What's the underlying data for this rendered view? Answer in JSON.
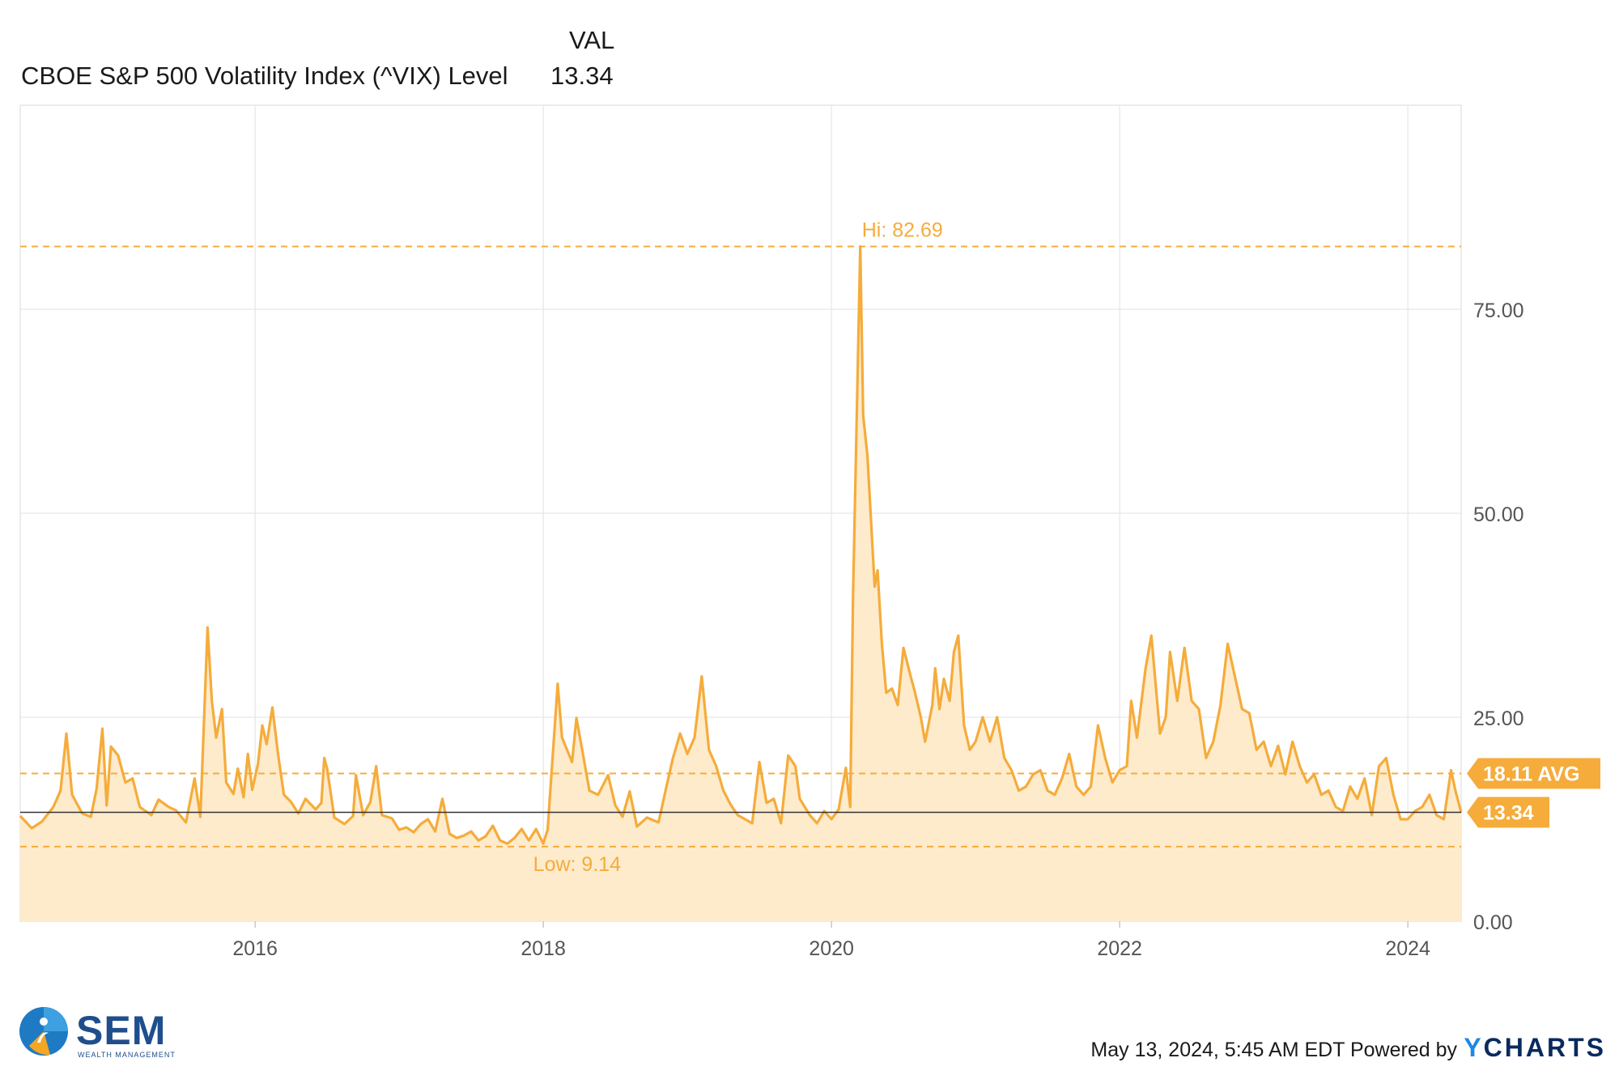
{
  "header": {
    "column_label": "VAL",
    "series_name": "CBOE S&P 500 Volatility Index (^VIX) Level",
    "series_value": "13.34"
  },
  "colors": {
    "line": "#f5ac3b",
    "fill": "#fdebcc",
    "grid": "#e6e6e6",
    "axis_text": "#555555",
    "badge": "#f5ac3b",
    "current_line": "#333333"
  },
  "chart_data": {
    "type": "area",
    "ylim": [
      0,
      100
    ],
    "y_ticks": [
      0,
      25,
      50,
      75
    ],
    "y_tick_labels": [
      "0.00",
      "25.00",
      "50.00",
      "75.00"
    ],
    "x_ticks": [
      2016,
      2018,
      2020,
      2022,
      2024
    ],
    "x_tick_labels": [
      "2016",
      "2018",
      "2020",
      "2022",
      "2024"
    ],
    "xlim": [
      2014.37,
      2024.37
    ],
    "grid": true,
    "series": [
      {
        "name": "CBOE S&P 500 Volatility Index (^VIX) Level",
        "points": [
          [
            2014.37,
            12.9
          ],
          [
            2014.45,
            11.4
          ],
          [
            2014.52,
            12.2
          ],
          [
            2014.6,
            14.0
          ],
          [
            2014.65,
            16.0
          ],
          [
            2014.69,
            23.0
          ],
          [
            2014.73,
            15.5
          ],
          [
            2014.8,
            13.2
          ],
          [
            2014.86,
            12.8
          ],
          [
            2014.9,
            16.2
          ],
          [
            2014.94,
            23.6
          ],
          [
            2014.97,
            14.2
          ],
          [
            2015.0,
            21.4
          ],
          [
            2015.05,
            20.3
          ],
          [
            2015.1,
            17.0
          ],
          [
            2015.15,
            17.5
          ],
          [
            2015.2,
            14.0
          ],
          [
            2015.28,
            13.0
          ],
          [
            2015.33,
            14.9
          ],
          [
            2015.4,
            14.0
          ],
          [
            2015.45,
            13.6
          ],
          [
            2015.52,
            12.1
          ],
          [
            2015.58,
            17.5
          ],
          [
            2015.62,
            12.8
          ],
          [
            2015.67,
            36.0
          ],
          [
            2015.7,
            27.0
          ],
          [
            2015.73,
            22.5
          ],
          [
            2015.77,
            26.0
          ],
          [
            2015.8,
            17.0
          ],
          [
            2015.85,
            15.6
          ],
          [
            2015.88,
            18.7
          ],
          [
            2015.92,
            15.2
          ],
          [
            2015.95,
            20.5
          ],
          [
            2015.98,
            16.1
          ],
          [
            2016.02,
            19.3
          ],
          [
            2016.05,
            24.0
          ],
          [
            2016.08,
            21.7
          ],
          [
            2016.12,
            26.2
          ],
          [
            2016.16,
            20.4
          ],
          [
            2016.2,
            15.5
          ],
          [
            2016.25,
            14.6
          ],
          [
            2016.3,
            13.2
          ],
          [
            2016.35,
            15.0
          ],
          [
            2016.42,
            13.7
          ],
          [
            2016.46,
            14.5
          ],
          [
            2016.48,
            20.0
          ],
          [
            2016.5,
            18.7
          ],
          [
            2016.55,
            12.7
          ],
          [
            2016.62,
            11.9
          ],
          [
            2016.68,
            12.9
          ],
          [
            2016.7,
            17.9
          ],
          [
            2016.75,
            13.0
          ],
          [
            2016.8,
            14.6
          ],
          [
            2016.84,
            19.0
          ],
          [
            2016.88,
            13.0
          ],
          [
            2016.95,
            12.6
          ],
          [
            2017.0,
            11.2
          ],
          [
            2017.05,
            11.5
          ],
          [
            2017.1,
            10.9
          ],
          [
            2017.15,
            11.9
          ],
          [
            2017.2,
            12.5
          ],
          [
            2017.25,
            11.0
          ],
          [
            2017.3,
            15.0
          ],
          [
            2017.35,
            10.7
          ],
          [
            2017.4,
            10.2
          ],
          [
            2017.45,
            10.5
          ],
          [
            2017.5,
            11.0
          ],
          [
            2017.55,
            9.9
          ],
          [
            2017.6,
            10.4
          ],
          [
            2017.65,
            11.7
          ],
          [
            2017.7,
            9.9
          ],
          [
            2017.75,
            9.5
          ],
          [
            2017.8,
            10.2
          ],
          [
            2017.85,
            11.3
          ],
          [
            2017.9,
            9.9
          ],
          [
            2017.95,
            11.3
          ],
          [
            2018.0,
            9.5
          ],
          [
            2018.03,
            11.2
          ],
          [
            2018.1,
            29.1
          ],
          [
            2018.13,
            22.5
          ],
          [
            2018.2,
            19.5
          ],
          [
            2018.23,
            24.9
          ],
          [
            2018.28,
            20.0
          ],
          [
            2018.32,
            16.0
          ],
          [
            2018.38,
            15.5
          ],
          [
            2018.45,
            17.9
          ],
          [
            2018.5,
            14.2
          ],
          [
            2018.55,
            12.8
          ],
          [
            2018.6,
            15.9
          ],
          [
            2018.65,
            11.6
          ],
          [
            2018.72,
            12.7
          ],
          [
            2018.8,
            12.1
          ],
          [
            2018.85,
            16.1
          ],
          [
            2018.9,
            20.0
          ],
          [
            2018.95,
            23.0
          ],
          [
            2019.0,
            20.5
          ],
          [
            2019.05,
            22.5
          ],
          [
            2019.1,
            30.0
          ],
          [
            2019.15,
            21.0
          ],
          [
            2019.2,
            19.0
          ],
          [
            2019.25,
            16.0
          ],
          [
            2019.3,
            14.3
          ],
          [
            2019.35,
            13.0
          ],
          [
            2019.45,
            12.0
          ],
          [
            2019.5,
            19.5
          ],
          [
            2019.55,
            14.5
          ],
          [
            2019.6,
            15.0
          ],
          [
            2019.65,
            12.0
          ],
          [
            2019.7,
            20.3
          ],
          [
            2019.75,
            19.0
          ],
          [
            2019.78,
            15.0
          ],
          [
            2019.85,
            13.0
          ],
          [
            2019.9,
            12.0
          ],
          [
            2019.95,
            13.5
          ],
          [
            2020.0,
            12.5
          ],
          [
            2020.05,
            13.7
          ],
          [
            2020.1,
            18.8
          ],
          [
            2020.13,
            14.0
          ],
          [
            2020.15,
            40.0
          ],
          [
            2020.2,
            82.69
          ],
          [
            2020.22,
            62.0
          ],
          [
            2020.25,
            57.0
          ],
          [
            2020.3,
            41.0
          ],
          [
            2020.32,
            43.0
          ],
          [
            2020.35,
            34.0
          ],
          [
            2020.38,
            28.0
          ],
          [
            2020.42,
            28.5
          ],
          [
            2020.46,
            26.5
          ],
          [
            2020.5,
            33.5
          ],
          [
            2020.55,
            30.0
          ],
          [
            2020.58,
            28.0
          ],
          [
            2020.62,
            25.0
          ],
          [
            2020.65,
            22.0
          ],
          [
            2020.7,
            26.5
          ],
          [
            2020.72,
            31.0
          ],
          [
            2020.75,
            26.0
          ],
          [
            2020.78,
            29.7
          ],
          [
            2020.82,
            27.0
          ],
          [
            2020.85,
            33.0
          ],
          [
            2020.88,
            35.0
          ],
          [
            2020.92,
            24.0
          ],
          [
            2020.96,
            21.0
          ],
          [
            2021.0,
            22.0
          ],
          [
            2021.05,
            25.0
          ],
          [
            2021.1,
            22.0
          ],
          [
            2021.15,
            25.0
          ],
          [
            2021.2,
            20.0
          ],
          [
            2021.25,
            18.5
          ],
          [
            2021.3,
            16.0
          ],
          [
            2021.35,
            16.5
          ],
          [
            2021.4,
            18.0
          ],
          [
            2021.45,
            18.5
          ],
          [
            2021.5,
            16.0
          ],
          [
            2021.55,
            15.5
          ],
          [
            2021.6,
            17.5
          ],
          [
            2021.65,
            20.5
          ],
          [
            2021.7,
            16.5
          ],
          [
            2021.75,
            15.5
          ],
          [
            2021.8,
            16.5
          ],
          [
            2021.85,
            24.0
          ],
          [
            2021.9,
            20.0
          ],
          [
            2021.95,
            17.0
          ],
          [
            2022.0,
            18.5
          ],
          [
            2022.05,
            19.0
          ],
          [
            2022.08,
            27.0
          ],
          [
            2022.12,
            22.5
          ],
          [
            2022.18,
            31.0
          ],
          [
            2022.22,
            35.0
          ],
          [
            2022.28,
            23.0
          ],
          [
            2022.32,
            25.0
          ],
          [
            2022.35,
            33.0
          ],
          [
            2022.4,
            27.0
          ],
          [
            2022.45,
            33.5
          ],
          [
            2022.5,
            27.0
          ],
          [
            2022.55,
            26.0
          ],
          [
            2022.6,
            20.0
          ],
          [
            2022.65,
            22.0
          ],
          [
            2022.7,
            26.5
          ],
          [
            2022.75,
            34.0
          ],
          [
            2022.8,
            30.0
          ],
          [
            2022.85,
            26.0
          ],
          [
            2022.9,
            25.5
          ],
          [
            2022.95,
            21.0
          ],
          [
            2023.0,
            22.0
          ],
          [
            2023.05,
            19.0
          ],
          [
            2023.1,
            21.5
          ],
          [
            2023.15,
            18.0
          ],
          [
            2023.2,
            22.0
          ],
          [
            2023.25,
            19.0
          ],
          [
            2023.3,
            17.0
          ],
          [
            2023.35,
            18.0
          ],
          [
            2023.4,
            15.5
          ],
          [
            2023.45,
            16.0
          ],
          [
            2023.5,
            14.0
          ],
          [
            2023.55,
            13.5
          ],
          [
            2023.6,
            16.5
          ],
          [
            2023.65,
            15.0
          ],
          [
            2023.7,
            17.5
          ],
          [
            2023.75,
            13.0
          ],
          [
            2023.8,
            19.0
          ],
          [
            2023.85,
            20.0
          ],
          [
            2023.9,
            15.5
          ],
          [
            2023.95,
            12.5
          ],
          [
            2024.0,
            12.5
          ],
          [
            2024.05,
            13.5
          ],
          [
            2024.1,
            14.0
          ],
          [
            2024.15,
            15.5
          ],
          [
            2024.2,
            13.0
          ],
          [
            2024.25,
            12.5
          ],
          [
            2024.3,
            18.5
          ],
          [
            2024.33,
            16.0
          ],
          [
            2024.37,
            13.34
          ]
        ]
      }
    ],
    "annotations": {
      "high_label": "Hi: 82.69",
      "high_value": 82.69,
      "low_label": "Low: 9.14",
      "low_value": 9.14,
      "avg_label": "18.11 AVG",
      "avg_value": 18.11,
      "current_label": "13.34",
      "current_value": 13.34
    }
  },
  "footer": {
    "logo_text": "SEM",
    "logo_subtext": "WEALTH MANAGEMENT",
    "timestamp": "May 13, 2024, 5:45 AM EDT Powered by",
    "brand_y": "Y",
    "brand_rest": "CHARTS"
  }
}
